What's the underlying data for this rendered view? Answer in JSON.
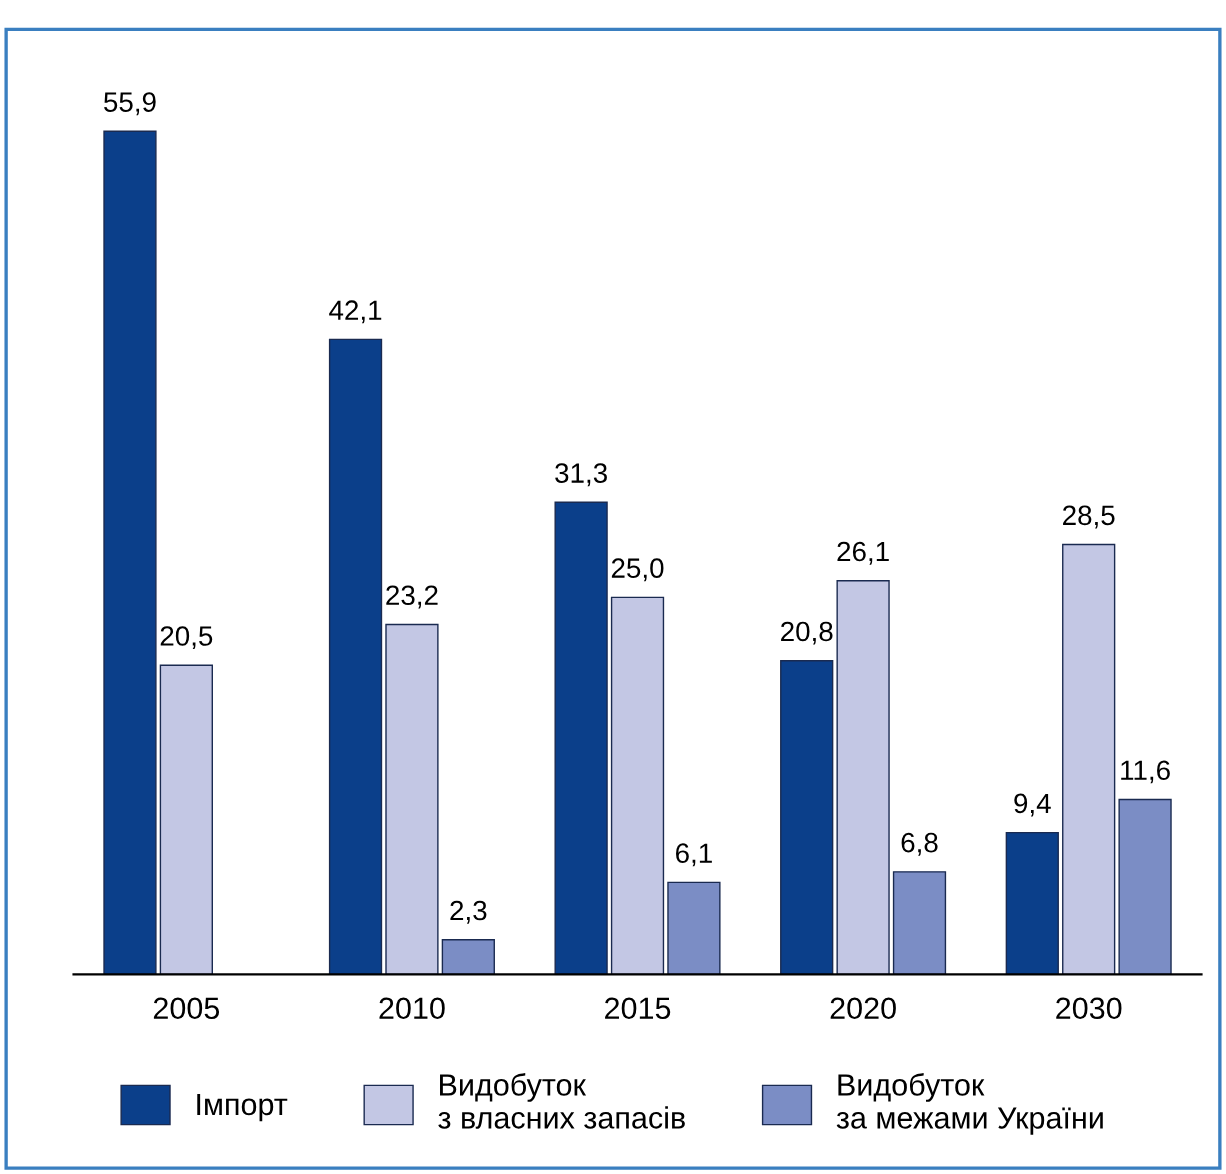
{
  "chart_data": {
    "type": "bar",
    "categories": [
      "2005",
      "2010",
      "2015",
      "2020",
      "2030"
    ],
    "series": [
      {
        "name": "Імпорт",
        "color": "#0b3f8a",
        "values": [
          55.9,
          42.1,
          31.3,
          20.8,
          9.4
        ],
        "value_labels": [
          "55,9",
          "42,1",
          "31,3",
          "20,8",
          "9,4"
        ]
      },
      {
        "name": "Видобуток\nз власних запасів",
        "color": "#c3c7e4",
        "values": [
          20.5,
          23.2,
          25.0,
          26.1,
          28.5
        ],
        "value_labels": [
          "20,5",
          "23,2",
          "25,0",
          "26,1",
          "28,5"
        ]
      },
      {
        "name": "Видобуток\nза межами України",
        "color": "#7b8dc5",
        "values": [
          null,
          2.3,
          6.1,
          6.8,
          11.6
        ],
        "value_labels": [
          null,
          "2,3",
          "6,1",
          "6,8",
          "11,6"
        ]
      }
    ],
    "legend": "bottom",
    "grid": false
  }
}
